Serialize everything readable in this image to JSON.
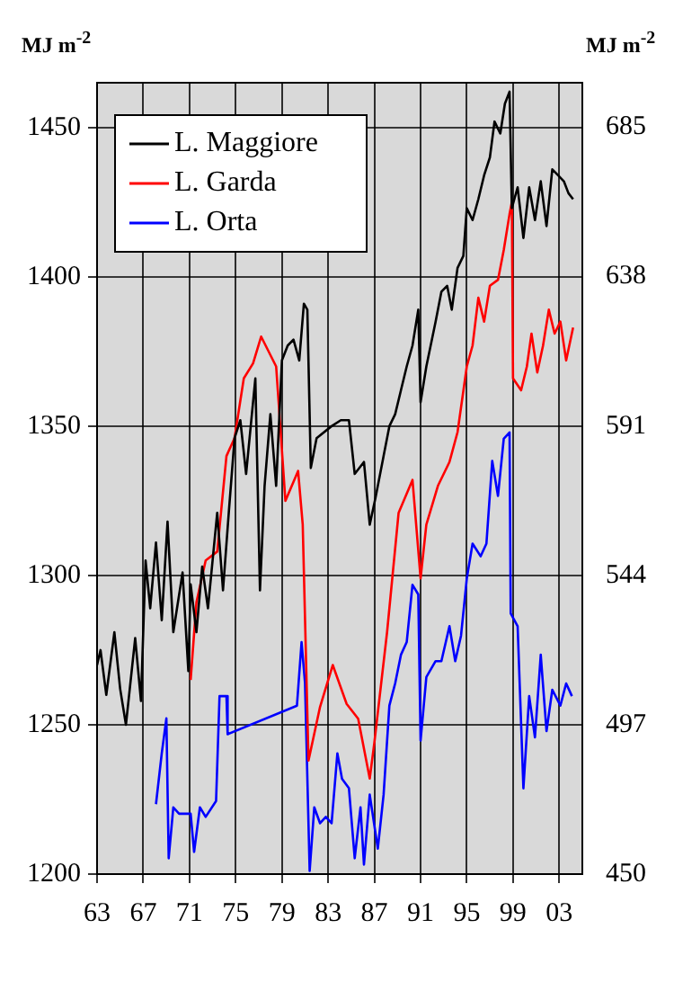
{
  "chart_data": {
    "type": "line",
    "ylabel": "MJ m$^{-2}$",
    "y2label": "MJ m$^{-2}$",
    "xlim": [
      1963,
      2005
    ],
    "xticks": [
      {
        "value": 1963,
        "label": "63"
      },
      {
        "value": 1967,
        "label": "67"
      },
      {
        "value": 1971,
        "label": "71"
      },
      {
        "value": 1975,
        "label": "75"
      },
      {
        "value": 1979,
        "label": "79"
      },
      {
        "value": 1983,
        "label": "83"
      },
      {
        "value": 1987,
        "label": "87"
      },
      {
        "value": 1991,
        "label": "91"
      },
      {
        "value": 1995,
        "label": "95"
      },
      {
        "value": 1999,
        "label": "99"
      },
      {
        "value": 2003,
        "label": "03"
      }
    ],
    "ylim": [
      1200,
      1465
    ],
    "yticks": [
      1200,
      1250,
      1300,
      1350,
      1400,
      1450
    ],
    "y2lim": [
      450,
      699
    ],
    "y2ticks": [
      450,
      497,
      544,
      591,
      638,
      685
    ],
    "grid": true,
    "legend": "top left",
    "marker": "none",
    "line_style": "solid",
    "series": [
      {
        "name": "L. Maggiore",
        "color": "#000000",
        "x": [
          1963.0,
          1963.3,
          1963.8,
          1964.5,
          1965.0,
          1965.5,
          1966.3,
          1966.8,
          1967.2,
          1967.6,
          1968.1,
          1968.6,
          1969.1,
          1969.6,
          1970.4,
          1970.9,
          1971.1,
          1971.6,
          1972.1,
          1972.6,
          1973.4,
          1973.9,
          1974.4,
          1974.9,
          1975.4,
          1975.9,
          1976.5,
          1976.7,
          1977.1,
          1977.5,
          1978.0,
          1978.5,
          1979.0,
          1979.5,
          1980.0,
          1980.5,
          1980.9,
          1981.2,
          1981.5,
          1982.0,
          1983.3,
          1984.1,
          1984.8,
          1985.3,
          1986.1,
          1986.6,
          1987.1,
          1987.8,
          1988.3,
          1988.8,
          1989.3,
          1989.8,
          1990.3,
          1990.8,
          1991.0,
          1991.5,
          1992.3,
          1992.8,
          1993.3,
          1993.7,
          1994.2,
          1994.7,
          1995.0,
          1995.5,
          1996.0,
          1996.5,
          1997.0,
          1997.4,
          1997.9,
          1998.3,
          1998.7,
          1998.9,
          1999.4,
          1999.9,
          2000.4,
          2000.9,
          2001.4,
          2001.9,
          2002.4,
          2002.9,
          2003.4,
          2003.8,
          2004.2
        ],
        "values": [
          1270,
          1275,
          1260,
          1281,
          1262,
          1250,
          1279,
          1258,
          1305,
          1289,
          1311,
          1285,
          1318,
          1281,
          1301,
          1268,
          1297,
          1281,
          1303,
          1289,
          1321,
          1295,
          1321,
          1346,
          1352,
          1334,
          1358,
          1366,
          1295,
          1330,
          1354,
          1330,
          1372,
          1377,
          1379,
          1372,
          1391,
          1389,
          1336,
          1346,
          1350,
          1352,
          1352,
          1334,
          1338,
          1317,
          1326,
          1340,
          1350,
          1354,
          1362,
          1370,
          1377,
          1389,
          1358,
          1370,
          1385,
          1395,
          1397,
          1389,
          1403,
          1407,
          1423,
          1419,
          1426,
          1434,
          1440,
          1452,
          1448,
          1458,
          1462,
          1423,
          1430,
          1413,
          1430,
          1419,
          1432,
          1417,
          1436,
          1434,
          1432,
          1428,
          1426
        ]
      },
      {
        "name": "L. Garda",
        "color": "#ff0000",
        "x": [
          1971.1,
          1971.6,
          1972.4,
          1973.4,
          1974.2,
          1974.9,
          1975.7,
          1976.5,
          1977.2,
          1978.5,
          1979.3,
          1980.4,
          1980.8,
          1981.3,
          1982.3,
          1983.4,
          1984.6,
          1985.6,
          1986.6,
          1987.0,
          1988.1,
          1989.1,
          1990.3,
          1991.0,
          1991.5,
          1992.5,
          1993.5,
          1994.2,
          1995.0,
          1995.5,
          1996.0,
          1996.5,
          1997.0,
          1997.7,
          1998.2,
          1998.7,
          1998.9,
          1999.0,
          1999.7,
          2000.2,
          2000.6,
          2001.1,
          2001.6,
          2002.1,
          2002.6,
          2003.1,
          2003.6,
          2004.2
        ],
        "values": [
          1265,
          1291,
          1305,
          1308,
          1340,
          1346,
          1366,
          1371,
          1380,
          1370,
          1325,
          1335,
          1317,
          1238,
          1256,
          1270,
          1257,
          1252,
          1232,
          1244,
          1281,
          1321,
          1332,
          1299,
          1317,
          1330,
          1338,
          1348,
          1370,
          1377,
          1393,
          1385,
          1397,
          1399,
          1409,
          1421,
          1425,
          1366,
          1362,
          1370,
          1381,
          1368,
          1377,
          1389,
          1381,
          1385,
          1372,
          1383
        ]
      },
      {
        "name": "L. Orta",
        "color": "#0000ff",
        "axis": "y2",
        "x": [
          1968.1,
          1968.6,
          1969.0,
          1969.2,
          1969.6,
          1970.1,
          1971.1,
          1971.4,
          1971.9,
          1972.4,
          1973.3,
          1973.6,
          1974.2,
          1974.3,
          1980.3,
          1980.7,
          1981.0,
          1981.4,
          1981.8,
          1982.3,
          1982.8,
          1983.3,
          1983.8,
          1984.2,
          1984.8,
          1985.3,
          1985.8,
          1986.1,
          1986.6,
          1987.3,
          1987.8,
          1988.3,
          1988.8,
          1989.3,
          1989.8,
          1990.3,
          1990.8,
          1991.0,
          1991.5,
          1992.3,
          1992.8,
          1993.5,
          1994.0,
          1994.5,
          1995.0,
          1995.5,
          1996.2,
          1996.7,
          1997.2,
          1997.7,
          1998.2,
          1998.7,
          1998.8,
          1999.4,
          1999.9,
          2000.4,
          2000.9,
          2001.4,
          2001.9,
          2002.4,
          2003.1,
          2003.6,
          2004.1
        ],
        "values": [
          472,
          488,
          499,
          455,
          471,
          469,
          469,
          457,
          471,
          468,
          473,
          506,
          506,
          494,
          503,
          523,
          510,
          451,
          471,
          466,
          468,
          466,
          488,
          480,
          477,
          455,
          471,
          453,
          475,
          458,
          475,
          503,
          510,
          519,
          523,
          541,
          538,
          492,
          512,
          517,
          517,
          528,
          517,
          525,
          543,
          554,
          550,
          554,
          580,
          569,
          587,
          589,
          532,
          528,
          477,
          506,
          493,
          519,
          495,
          508,
          503,
          510,
          506
        ]
      }
    ]
  }
}
